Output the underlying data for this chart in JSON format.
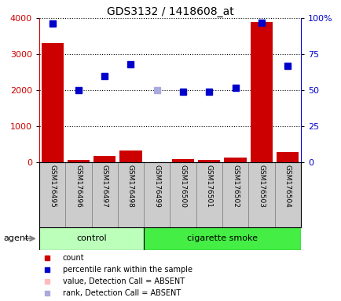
{
  "title": "GDS3132 / 1418608_at",
  "samples": [
    "GSM176495",
    "GSM176496",
    "GSM176497",
    "GSM176498",
    "GSM176499",
    "GSM176500",
    "GSM176501",
    "GSM176502",
    "GSM176503",
    "GSM176504"
  ],
  "count_values": [
    3300,
    80,
    175,
    325,
    0,
    90,
    80,
    130,
    3900,
    290
  ],
  "count_absent": [
    false,
    false,
    false,
    false,
    true,
    false,
    false,
    false,
    false,
    false
  ],
  "percentile_values": [
    96,
    50,
    60,
    68,
    50,
    49,
    49,
    52,
    97,
    67
  ],
  "percentile_absent": [
    false,
    false,
    false,
    false,
    true,
    false,
    false,
    false,
    false,
    false
  ],
  "left_ylim": [
    0,
    4000
  ],
  "right_ylim": [
    0,
    100
  ],
  "left_yticks": [
    0,
    1000,
    2000,
    3000,
    4000
  ],
  "right_yticks": [
    0,
    25,
    50,
    75,
    100
  ],
  "right_yticklabels": [
    "0",
    "25",
    "50",
    "75",
    "100%"
  ],
  "bar_color_normal": "#cc0000",
  "bar_color_absent": "#ffbbbb",
  "dot_color_normal": "#0000cc",
  "dot_color_absent": "#aaaadd",
  "control_bg": "#bbffbb",
  "smoke_bg": "#44ee44",
  "sample_bg": "#cccccc",
  "plot_bg": "#ffffff",
  "left_axis_color": "#cc0000",
  "right_axis_color": "#0000cc",
  "n_control": 4,
  "n_smoke": 6
}
